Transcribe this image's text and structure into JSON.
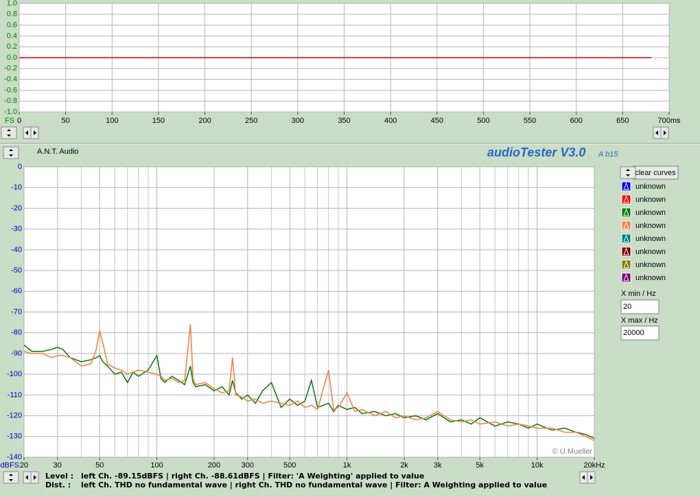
{
  "header": {
    "brand": "A.N.T. Audio",
    "app_title": "audioTester V3.0",
    "version": "A b15"
  },
  "chart_data": [
    {
      "type": "line",
      "ylabel": "FS",
      "x": [
        0,
        681
      ],
      "values": [
        0,
        0
      ],
      "color": "#cc0000",
      "xlim": [
        0,
        700
      ],
      "xticks": [
        0,
        50,
        100,
        150,
        200,
        250,
        300,
        350,
        400,
        450,
        500,
        550,
        600,
        650,
        {
          "value": 700,
          "label": "700ms"
        }
      ],
      "ylim": [
        -1,
        1
      ],
      "yticks": [
        {
          "value": 1,
          "label": "1.0"
        },
        0.8,
        0.6,
        0.4,
        0.2,
        {
          "value": 0,
          "label": "0.0"
        },
        -0.2,
        -0.4,
        -0.6,
        -0.8,
        {
          "value": -1,
          "label": "-1.0"
        }
      ],
      "grid": true
    },
    {
      "type": "line",
      "ylabel": "dBFS",
      "log_x": true,
      "grid": true,
      "annotation": "© U.Mueller",
      "xlim": [
        20,
        20000
      ],
      "xticks": [
        20,
        30,
        50,
        100,
        200,
        300,
        500,
        {
          "value": 1000,
          "label": "1k"
        },
        {
          "value": 2000,
          "label": "2k"
        },
        {
          "value": 3000,
          "label": "3k"
        },
        {
          "value": 5000,
          "label": "5k"
        },
        {
          "value": 10000,
          "label": "10k"
        },
        {
          "value": 20000,
          "label": "20kHz"
        }
      ],
      "x_minor_ticks": [
        40,
        60,
        70,
        80,
        90,
        400,
        600,
        700,
        800,
        900,
        4000,
        6000,
        7000,
        8000,
        9000
      ],
      "ylim": [
        -140,
        0
      ],
      "yticks": [
        0,
        -10,
        -20,
        -30,
        -40,
        -50,
        -60,
        -70,
        -80,
        -90,
        -100,
        -110,
        -120,
        -130,
        -140
      ],
      "x": [
        20,
        22,
        25,
        28,
        30,
        32,
        35,
        40,
        45,
        48,
        50,
        52,
        55,
        60,
        65,
        70,
        75,
        80,
        90,
        100,
        105,
        110,
        120,
        130,
        140,
        150,
        155,
        160,
        180,
        200,
        220,
        240,
        250,
        260,
        280,
        300,
        330,
        360,
        400,
        450,
        500,
        550,
        600,
        650,
        700,
        800,
        850,
        900,
        1000,
        1100,
        1200,
        1400,
        1600,
        1800,
        2000,
        2300,
        2600,
        3000,
        3500,
        4000,
        4500,
        5000,
        6000,
        7000,
        8000,
        9000,
        10000,
        12000,
        14000,
        16000,
        18000,
        20000
      ],
      "series": [
        {
          "color": "#1a7a1a",
          "values": [
            -86,
            -89,
            -89,
            -88,
            -87,
            -88,
            -92,
            -94,
            -93,
            -92,
            -91,
            -94,
            -96,
            -100,
            -99,
            -104,
            -99,
            -101,
            -98,
            -91,
            -102,
            -104,
            -101,
            -103,
            -105,
            -96,
            -104,
            -106,
            -105,
            -108,
            -106,
            -110,
            -103,
            -109,
            -112,
            -110,
            -114,
            -108,
            -104,
            -116,
            -112,
            -115,
            -113,
            -103,
            -116,
            -114,
            -118,
            -115,
            -117,
            -116,
            -119,
            -118,
            -120,
            -119,
            -121,
            -120,
            -122,
            -119,
            -123,
            -122,
            -124,
            -121,
            -125,
            -123,
            -124,
            -126,
            -124,
            -127,
            -126,
            -128,
            -129,
            -131
          ]
        },
        {
          "color": "#f0844a",
          "values": [
            -89,
            -90,
            -90,
            -92,
            -91,
            -91,
            -92,
            -96,
            -95,
            -88,
            -79,
            -85,
            -95,
            -97,
            -98,
            -100,
            -99,
            -98,
            -99,
            -100,
            -101,
            -103,
            -102,
            -104,
            -103,
            -76,
            -102,
            -105,
            -104,
            -107,
            -109,
            -108,
            -92,
            -110,
            -111,
            -113,
            -112,
            -114,
            -113,
            -114,
            -115,
            -113,
            -116,
            -115,
            -117,
            -98,
            -117,
            -116,
            -109,
            -118,
            -117,
            -120,
            -118,
            -121,
            -120,
            -122,
            -121,
            -118,
            -122,
            -123,
            -122,
            -124,
            -123,
            -125,
            -124,
            -125,
            -126,
            -126,
            -128,
            -128,
            -130,
            -132
          ]
        }
      ]
    }
  ],
  "legend": {
    "button": "clear curves",
    "entries": [
      {
        "label": "unknown",
        "color": "#0000ff"
      },
      {
        "label": "unknown",
        "color": "#ff0000"
      },
      {
        "label": "unknown",
        "color": "#008000"
      },
      {
        "label": "unknown",
        "color": "#ff8040"
      },
      {
        "label": "unknown",
        "color": "#008080"
      },
      {
        "label": "unknown",
        "color": "#800000"
      },
      {
        "label": "unknown",
        "color": "#808000"
      },
      {
        "label": "unknown",
        "color": "#800080"
      }
    ]
  },
  "x_range": {
    "min_label": "X min / Hz",
    "min_value": "20",
    "max_label": "X max / Hz",
    "max_value": "20000"
  },
  "status": {
    "level_label": "Level :",
    "level_text": "left Ch. -89.15dBFS | right Ch. -88.61dBFS | Filter: 'A Weighting' applied to value",
    "dist_label": "Dist. :",
    "dist_text": "left Ch. THD no fundamental wave | right Ch. THD no fundamental wave | Filter: A Weighting applied to value"
  }
}
